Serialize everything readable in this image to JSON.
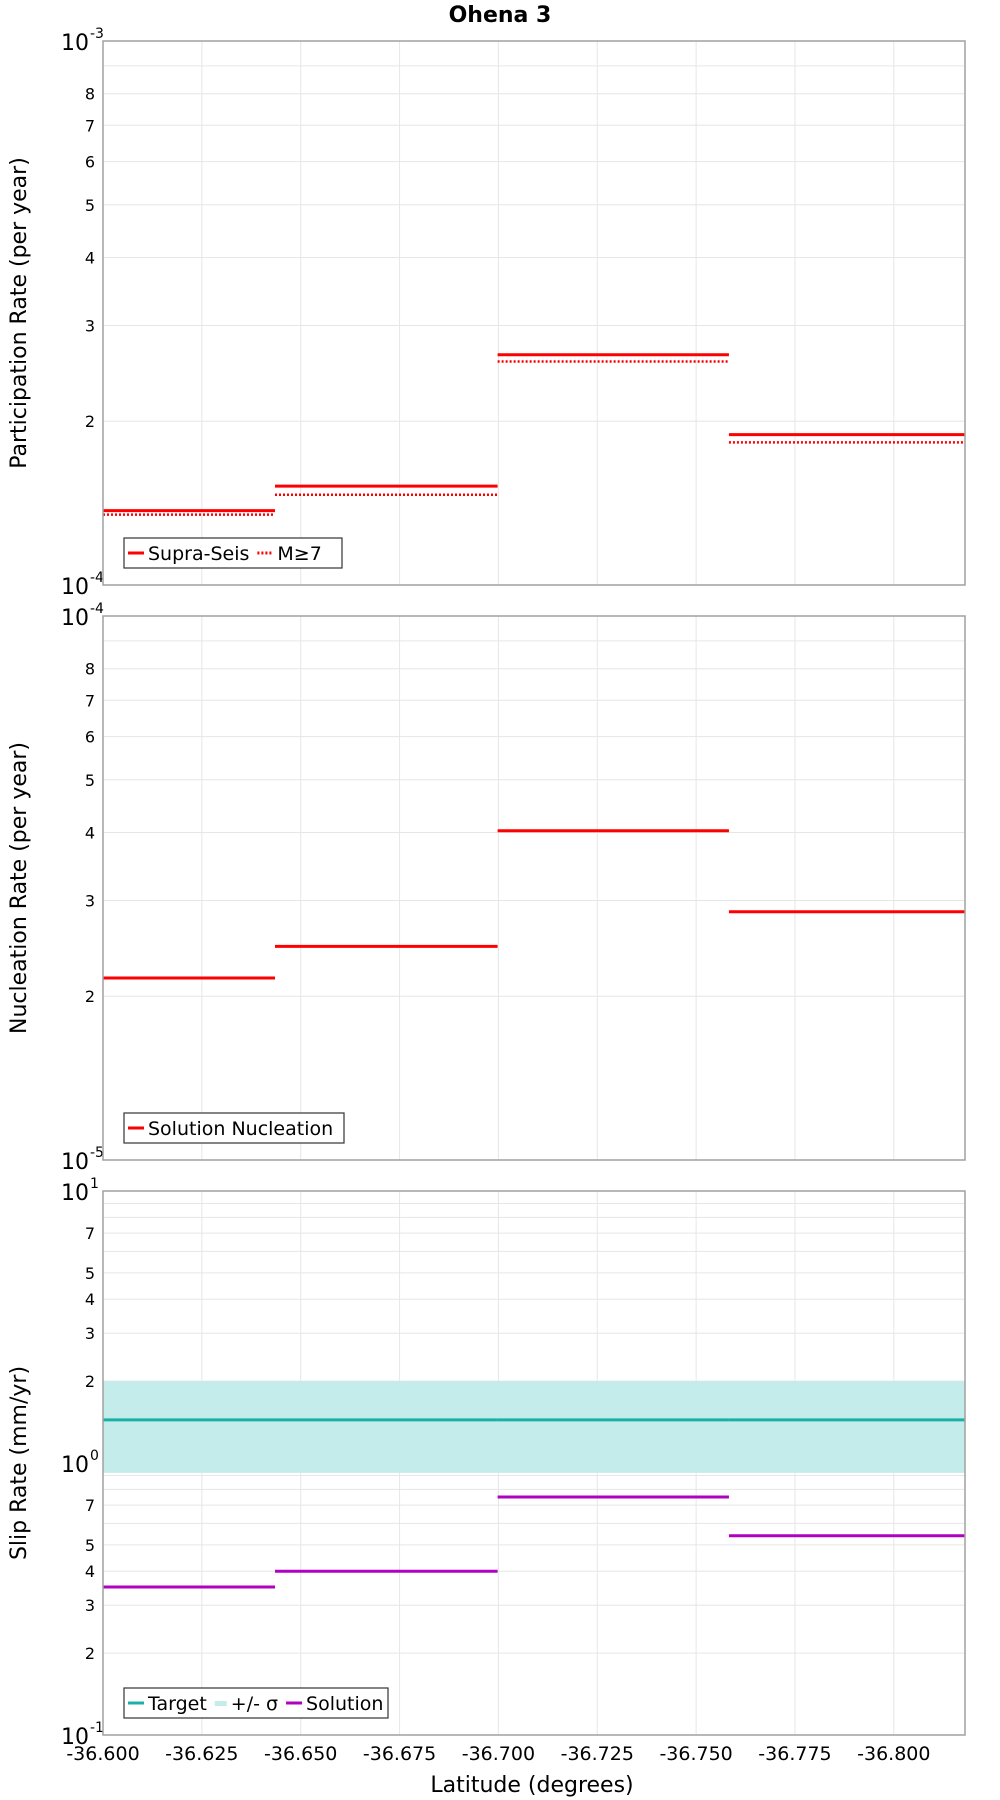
{
  "title": "Ohena 3",
  "xlabel": "Latitude (degrees)",
  "x_ticks": [
    "-36.600",
    "-36.625",
    "-36.650",
    "-36.675",
    "-36.700",
    "-36.725",
    "-36.750",
    "-36.775",
    "-36.800"
  ],
  "colors": {
    "red": "#ff0000",
    "target": "#1ab0a8",
    "band": "#c3ecea",
    "solution": "#b000c0",
    "grid": "#e6e6e6",
    "frame": "#a0a0a0"
  },
  "chart_data": [
    {
      "type": "line",
      "subtype": "step",
      "ylabel": "Participation Rate (per year)",
      "yscale": "log",
      "ylim": [
        0.0001,
        0.001
      ],
      "xlim": [
        -36.6,
        -36.818
      ],
      "y_decade_labels": [
        {
          "base": "10",
          "exp": "-3"
        },
        {
          "base": "10",
          "exp": "-4"
        }
      ],
      "y_minor_labels": [
        "8",
        "7",
        "6",
        "5",
        "4",
        "3",
        "2"
      ],
      "segments": [
        [
          -36.6,
          -36.6435
        ],
        [
          -36.6435,
          -36.6998
        ],
        [
          -36.6998,
          -36.7583
        ],
        [
          -36.7583,
          -36.818
        ]
      ],
      "series": [
        {
          "name": "Supra-Seis",
          "style": "solid",
          "color": "#ff0000",
          "values": [
            0.000137,
            0.000152,
            0.000265,
            0.000189
          ]
        },
        {
          "name": "M≥7",
          "style": "dotted",
          "color": "#ff0000",
          "values": [
            0.000137,
            0.000149,
            0.000262,
            0.000186
          ]
        }
      ],
      "legend": "bottom-left"
    },
    {
      "type": "line",
      "subtype": "step",
      "ylabel": "Nucleation Rate (per year)",
      "yscale": "log",
      "ylim": [
        1e-05,
        0.0001
      ],
      "xlim": [
        -36.6,
        -36.818
      ],
      "y_decade_labels": [
        {
          "base": "10",
          "exp": "-4"
        },
        {
          "base": "10",
          "exp": "-5"
        }
      ],
      "y_minor_labels": [
        "8",
        "7",
        "6",
        "5",
        "4",
        "3",
        "2"
      ],
      "segments": [
        [
          -36.6,
          -36.6435
        ],
        [
          -36.6435,
          -36.6998
        ],
        [
          -36.6998,
          -36.7583
        ],
        [
          -36.7583,
          -36.818
        ]
      ],
      "series": [
        {
          "name": "Solution Nucleation",
          "style": "solid",
          "color": "#ff0000",
          "values": [
            2.16e-05,
            2.47e-05,
            4.03e-05,
            2.86e-05
          ]
        }
      ],
      "legend": "bottom-left"
    },
    {
      "type": "line",
      "subtype": "step",
      "ylabel": "Slip Rate (mm/yr)",
      "yscale": "log",
      "ylim": [
        0.1,
        10
      ],
      "xlim": [
        -36.6,
        -36.818
      ],
      "y_decade_labels": [
        {
          "base": "10",
          "exp": "1"
        },
        {
          "base": "10",
          "exp": "0"
        },
        {
          "base": "10",
          "exp": "-1"
        }
      ],
      "y_minor_labels": [
        "7",
        "5",
        "4",
        "3",
        "2",
        "7",
        "5",
        "4",
        "3",
        "2"
      ],
      "segments": [
        [
          -36.6,
          -36.6435
        ],
        [
          -36.6435,
          -36.6998
        ],
        [
          -36.6998,
          -36.7583
        ],
        [
          -36.7583,
          -36.818
        ]
      ],
      "series": [
        {
          "name": "Target",
          "style": "solid",
          "color": "#1ab0a8",
          "values": [
            1.44,
            1.44,
            1.44,
            1.44
          ]
        },
        {
          "name": "+/- σ",
          "style": "band",
          "color": "#c3ecea",
          "range": [
            0.92,
            2.0
          ]
        },
        {
          "name": "Solution",
          "style": "solid",
          "color": "#b000c0",
          "values": [
            0.35,
            0.4,
            0.75,
            0.54
          ]
        }
      ],
      "legend": "bottom-left"
    }
  ]
}
